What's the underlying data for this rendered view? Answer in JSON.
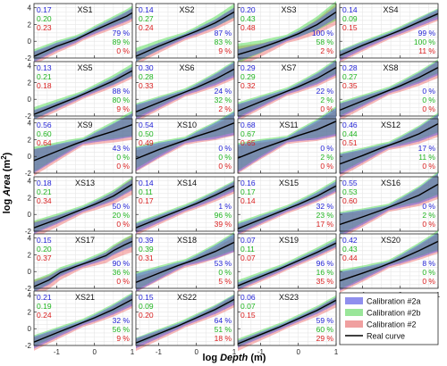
{
  "figure": {
    "ylabel_main": "log ",
    "ylabel_var": "Area",
    "ylabel_unit": " (m",
    "ylabel_sup": "2",
    "ylabel_close": ")",
    "xlabel_main": "log ",
    "xlabel_var": "Depth",
    "xlabel_unit": " (m)"
  },
  "colors": {
    "calib_2a": "#1f1fd6",
    "calib_2b": "#1fb51f",
    "calib_2": "#d91e1e",
    "band_2a": "rgba(70,70,230,0.45)",
    "band_2b": "rgba(60,215,60,0.45)",
    "band_2": "rgba(235,80,80,0.40)",
    "real": "#000000"
  },
  "legend": {
    "items": [
      {
        "label": "Calibration #2a",
        "color": "#8f8fee"
      },
      {
        "label": "Calibration #2b",
        "color": "#9ae69a"
      },
      {
        "label": "Calibration #2",
        "color": "#f0a0a0"
      },
      {
        "label": "Real curve",
        "color": "#000000",
        "line": true
      }
    ]
  },
  "chart_data": [
    {
      "type": "line",
      "title": "XS1",
      "errors": [
        "0.17",
        "0.20",
        "0.23"
      ],
      "percent": [
        "79 %",
        "89 %",
        "0 %"
      ],
      "xlim": [
        -1.6,
        1
      ],
      "ylim": [
        -2,
        4.5
      ],
      "real": {
        "x": [
          -1.6,
          -1,
          -0.5,
          0,
          0.5,
          0.85,
          1
        ],
        "y": [
          -1.8,
          -0.6,
          0.2,
          1.3,
          2.3,
          3.0,
          3.4
        ]
      }
    },
    {
      "type": "line",
      "title": "XS2",
      "errors": [
        "0.14",
        "0.27",
        "0.24"
      ],
      "percent": [
        "87 %",
        "83 %",
        "9 %"
      ],
      "xlim": [
        -1.6,
        1
      ],
      "ylim": [
        -2,
        4.5
      ],
      "real": {
        "x": [
          -1.6,
          -1,
          -0.5,
          0,
          0.5,
          1
        ],
        "y": [
          -1.8,
          -0.6,
          0.3,
          1.2,
          2.2,
          3.5
        ]
      }
    },
    {
      "type": "line",
      "title": "XS3",
      "errors": [
        "0.20",
        "0.43",
        "0.48"
      ],
      "percent": [
        "100 %",
        "58 %",
        "2 %"
      ],
      "xlim": [
        -1.6,
        1
      ],
      "ylim": [
        -2,
        4.5
      ],
      "real": {
        "x": [
          -1.6,
          -1,
          -0.5,
          0,
          0.5,
          1
        ],
        "y": [
          -1.6,
          -0.8,
          0.0,
          0.9,
          2.0,
          3.5
        ]
      }
    },
    {
      "type": "line",
      "title": "XS4",
      "errors": [
        "0.14",
        "0.09",
        "0.15"
      ],
      "percent": [
        "99 %",
        "100 %",
        "11 %"
      ],
      "xlim": [
        -1.6,
        1
      ],
      "ylim": [
        -2,
        4.5
      ],
      "real": {
        "x": [
          -1.6,
          -1,
          -0.5,
          0,
          0.5,
          1
        ],
        "y": [
          -1.7,
          -0.5,
          0.4,
          1.3,
          2.3,
          3.3
        ]
      }
    },
    {
      "type": "line",
      "title": "XS5",
      "errors": [
        "0.13",
        "0.21",
        "0.18"
      ],
      "percent": [
        "88 %",
        "80 %",
        "9 %"
      ],
      "xlim": [
        -1.6,
        1
      ],
      "ylim": [
        -2,
        4.5
      ],
      "real": {
        "x": [
          -1.6,
          -1,
          -0.5,
          0,
          0.5,
          1
        ],
        "y": [
          -1.8,
          -0.7,
          0.2,
          1.2,
          2.2,
          3.4
        ]
      }
    },
    {
      "type": "line",
      "title": "XS6",
      "errors": [
        "0.30",
        "0.28",
        "0.33"
      ],
      "percent": [
        "24 %",
        "32 %",
        "2 %"
      ],
      "xlim": [
        -1.6,
        1
      ],
      "ylim": [
        -2,
        4.5
      ],
      "real": {
        "x": [
          -1.6,
          -1,
          -0.5,
          0,
          0.5,
          1
        ],
        "y": [
          -1.5,
          -0.4,
          0.5,
          1.4,
          2.4,
          3.6
        ]
      }
    },
    {
      "type": "line",
      "title": "XS7",
      "errors": [
        "0.29",
        "0.29",
        "0.32"
      ],
      "percent": [
        "22 %",
        "2 %",
        "0 %"
      ],
      "xlim": [
        -1.6,
        1
      ],
      "ylim": [
        -2,
        4.5
      ],
      "real": {
        "x": [
          -1.6,
          -1,
          -0.5,
          0,
          0.5,
          1
        ],
        "y": [
          -1.4,
          -0.3,
          0.6,
          1.5,
          2.5,
          3.8
        ]
      }
    },
    {
      "type": "line",
      "title": "XS8",
      "errors": [
        "0.28",
        "0.27",
        "0.35"
      ],
      "percent": [
        "0 %",
        "0 %",
        "0 %"
      ],
      "xlim": [
        -1.6,
        1
      ],
      "ylim": [
        -2,
        4.5
      ],
      "real": {
        "x": [
          -1.6,
          -1,
          -0.5,
          0,
          0.5,
          1
        ],
        "y": [
          -1.3,
          -0.2,
          0.7,
          1.6,
          2.6,
          3.8
        ]
      }
    },
    {
      "type": "line",
      "title": "XS9",
      "errors": [
        "0.56",
        "0.60",
        "0.64"
      ],
      "percent": [
        "43 %",
        "0 %",
        "0 %"
      ],
      "xlim": [
        -1.6,
        1
      ],
      "ylim": [
        -2,
        4.5
      ],
      "real": {
        "x": [
          -1.6,
          -1,
          -0.5,
          0,
          0.5,
          1
        ],
        "y": [
          -0.5,
          0.6,
          1.5,
          2.3,
          3.0,
          3.8
        ]
      }
    },
    {
      "type": "line",
      "title": "XS10",
      "errors": [
        "0.54",
        "0.50",
        "0.49"
      ],
      "percent": [
        "0 %",
        "0 %",
        "0 %"
      ],
      "xlim": [
        -1.6,
        1
      ],
      "ylim": [
        -2,
        4.5
      ],
      "real": {
        "x": [
          -1.6,
          -1,
          -0.5,
          0,
          0.5,
          1
        ],
        "y": [
          -0.3,
          0.8,
          1.6,
          2.4,
          3.1,
          4.0
        ]
      }
    },
    {
      "type": "line",
      "title": "XS11",
      "errors": [
        "0.68",
        "0.67",
        "0.65"
      ],
      "percent": [
        "0 %",
        "2 %",
        "0 %"
      ],
      "xlim": [
        -1.6,
        1
      ],
      "ylim": [
        -2,
        4.5
      ],
      "real": {
        "x": [
          -1.6,
          -1,
          -0.5,
          0,
          0.5,
          1
        ],
        "y": [
          -0.2,
          0.9,
          1.7,
          2.5,
          3.2,
          4.2
        ]
      }
    },
    {
      "type": "line",
      "title": "XS12",
      "errors": [
        "0.46",
        "0.44",
        "0.51"
      ],
      "percent": [
        "17 %",
        "11 %",
        "0 %"
      ],
      "xlim": [
        -1.6,
        1
      ],
      "ylim": [
        -2,
        4.5
      ],
      "real": {
        "x": [
          -1.6,
          -1,
          -0.5,
          0,
          0.5,
          1
        ],
        "y": [
          -0.9,
          0.1,
          1.0,
          1.8,
          2.7,
          3.9
        ]
      }
    },
    {
      "type": "line",
      "title": "XS13",
      "errors": [
        "0.18",
        "0.21",
        "0.34"
      ],
      "percent": [
        "50 %",
        "20 %",
        "0 %"
      ],
      "xlim": [
        -1.6,
        1
      ],
      "ylim": [
        -2,
        4.5
      ],
      "real": {
        "x": [
          -1.6,
          -1,
          -0.5,
          0,
          0.5,
          1
        ],
        "y": [
          -1.6,
          -0.6,
          0.3,
          1.2,
          2.2,
          3.6
        ]
      }
    },
    {
      "type": "line",
      "title": "XS14",
      "errors": [
        "0.14",
        "0.11",
        "0.17"
      ],
      "percent": [
        "1 %",
        "96 %",
        "39 %"
      ],
      "xlim": [
        -1.6,
        1
      ],
      "ylim": [
        -2,
        4.5
      ],
      "real": {
        "x": [
          -1.6,
          -1,
          -0.5,
          0,
          0.5,
          1
        ],
        "y": [
          -1.6,
          -0.5,
          0.4,
          1.3,
          2.3,
          3.4
        ]
      }
    },
    {
      "type": "line",
      "title": "XS15",
      "errors": [
        "0.16",
        "0.17",
        "0.14"
      ],
      "percent": [
        "32 %",
        "23 %",
        "17 %"
      ],
      "xlim": [
        -1.6,
        1
      ],
      "ylim": [
        -2,
        4.5
      ],
      "real": {
        "x": [
          -1.6,
          -1,
          -0.5,
          0,
          0.5,
          1
        ],
        "y": [
          -1.7,
          -0.6,
          0.3,
          1.2,
          2.2,
          3.4
        ]
      }
    },
    {
      "type": "line",
      "title": "XS16",
      "errors": [
        "0.55",
        "0.53",
        "0.60"
      ],
      "percent": [
        "0 %",
        "2 %",
        "0 %"
      ],
      "xlim": [
        -1.6,
        1
      ],
      "ylim": [
        -2,
        4.5
      ],
      "real": {
        "x": [
          -1.6,
          -1,
          -0.5,
          0,
          0.5,
          1
        ],
        "y": [
          -1.2,
          -0.3,
          0.5,
          1.4,
          2.3,
          3.6
        ]
      }
    },
    {
      "type": "line",
      "title": "XS17",
      "errors": [
        "0.15",
        "0.20",
        "0.37"
      ],
      "percent": [
        "90 %",
        "36 %",
        "0 %"
      ],
      "xlim": [
        -1.6,
        1
      ],
      "ylim": [
        -2,
        4.5
      ],
      "real": {
        "x": [
          -1.6,
          -1.2,
          -0.9,
          -0.5,
          0,
          0.3,
          0.5,
          0.8,
          1
        ],
        "y": [
          -1.8,
          -1.0,
          -0.1,
          0.6,
          1.4,
          1.9,
          2.5,
          3.2,
          3.6
        ]
      }
    },
    {
      "type": "line",
      "title": "XS18",
      "errors": [
        "0.39",
        "0.39",
        "0.31"
      ],
      "percent": [
        "53 %",
        "0 %",
        "5 %"
      ],
      "xlim": [
        -1.6,
        1
      ],
      "ylim": [
        -2,
        4.5
      ],
      "real": {
        "x": [
          -1.6,
          -1,
          -0.5,
          0,
          0.5,
          1
        ],
        "y": [
          -1.3,
          -0.2,
          0.7,
          1.5,
          2.4,
          3.5
        ]
      }
    },
    {
      "type": "line",
      "title": "XS19",
      "errors": [
        "0.07",
        "0.11",
        "0.07"
      ],
      "percent": [
        "96 %",
        "16 %",
        "35 %"
      ],
      "xlim": [
        -1.6,
        1
      ],
      "ylim": [
        -2,
        4.5
      ],
      "real": {
        "x": [
          -1.6,
          -1,
          -0.5,
          0,
          0.5,
          1
        ],
        "y": [
          -1.7,
          -0.6,
          0.3,
          1.3,
          2.3,
          3.4
        ]
      }
    },
    {
      "type": "line",
      "title": "XS20",
      "errors": [
        "0.42",
        "0.43",
        "0.44"
      ],
      "percent": [
        "8 %",
        "0 %",
        "0 %"
      ],
      "xlim": [
        -1.6,
        1
      ],
      "ylim": [
        -2,
        4.5
      ],
      "real": {
        "x": [
          -1.6,
          -1,
          -0.5,
          0,
          0.5,
          1
        ],
        "y": [
          -1.1,
          -0.2,
          0.6,
          1.5,
          2.5,
          3.6
        ]
      }
    },
    {
      "type": "line",
      "title": "XS21",
      "errors": [
        "0.21",
        "0.19",
        "0.24"
      ],
      "percent": [
        "32 %",
        "56 %",
        "9 %"
      ],
      "xlim": [
        -1.6,
        1
      ],
      "ylim": [
        -2,
        4.5
      ],
      "real": {
        "x": [
          -1.6,
          -1,
          -0.5,
          0,
          0.5,
          1
        ],
        "y": [
          -1.6,
          -0.5,
          0.4,
          1.3,
          2.3,
          3.5
        ]
      }
    },
    {
      "type": "line",
      "title": "XS22",
      "errors": [
        "0.15",
        "0.09",
        "0.20"
      ],
      "percent": [
        "64 %",
        "51 %",
        "18 %"
      ],
      "xlim": [
        -1.6,
        1
      ],
      "ylim": [
        -2,
        4.5
      ],
      "real": {
        "x": [
          -1.6,
          -1,
          -0.5,
          0,
          0.5,
          1
        ],
        "y": [
          -1.7,
          -0.6,
          0.3,
          1.3,
          2.3,
          3.5
        ]
      }
    },
    {
      "type": "line",
      "title": "XS23",
      "errors": [
        "0.06",
        "0.07",
        "0.15"
      ],
      "percent": [
        "59 %",
        "60 %",
        "29 %"
      ],
      "xlim": [
        -1.6,
        1
      ],
      "ylim": [
        -2,
        4.5
      ],
      "real": {
        "x": [
          -1.6,
          -1,
          -0.5,
          0,
          0.5,
          1
        ],
        "y": [
          -1.8,
          -0.7,
          0.2,
          1.2,
          2.2,
          3.4
        ]
      }
    }
  ],
  "axes": {
    "xticks": [
      -1,
      0,
      1
    ],
    "xtick_labels": [
      "-1",
      "0",
      "1"
    ],
    "yticks": [
      -2,
      0,
      2,
      4
    ],
    "ytick_labels": [
      "-2",
      "0",
      "2",
      "4"
    ]
  }
}
